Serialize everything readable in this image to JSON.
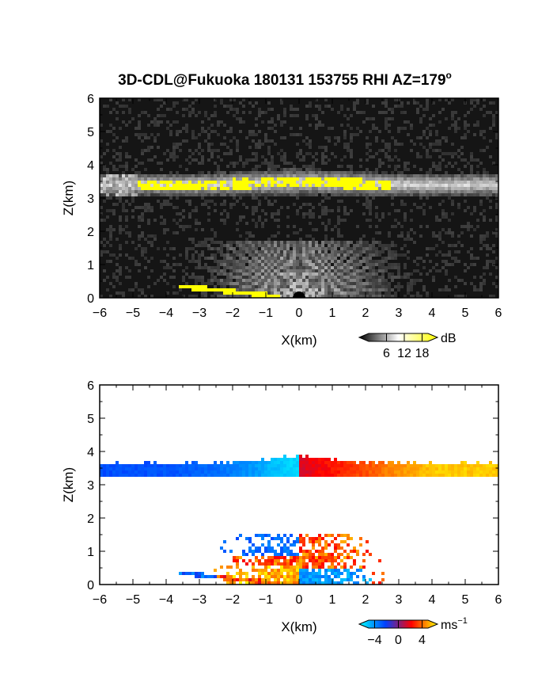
{
  "figure": {
    "title": "3D-CDL@Fukuoka 180131 153755 RHI AZ=179",
    "title_superscript": "o"
  },
  "chart_data": [
    {
      "type": "heatmap",
      "name": "backscatter-intensity",
      "xlabel": "X(km)",
      "ylabel": "Z(km)",
      "xlim": [
        -6,
        6
      ],
      "ylim": [
        0,
        6
      ],
      "x_ticks": [
        "-6",
        "-5",
        "-4",
        "-3",
        "-2",
        "-1",
        "0",
        "1",
        "2",
        "3",
        "4",
        "5",
        "6"
      ],
      "y_ticks": [
        "0",
        "1",
        "2",
        "3",
        "4",
        "5",
        "6"
      ],
      "background_color": "#151515",
      "colorbar": {
        "unit": "dB",
        "ticks": [
          "6",
          "12",
          "18"
        ],
        "tick_values": [
          6,
          12,
          18
        ],
        "range": [
          0,
          20
        ],
        "colors": [
          "#000000",
          "#ffffff",
          "#ffff00"
        ]
      },
      "features": [
        {
          "label": "cloud layer",
          "x_range": [
            -6,
            6
          ],
          "z_base": 3.15,
          "z_top": 3.65
        },
        {
          "label": "saturated cloud (>18 dB)",
          "x_range": [
            -5,
            2.8
          ],
          "z": 3.35
        },
        {
          "label": "near-field fan",
          "x_range": [
            -3.5,
            3.5
          ],
          "z_range": [
            0,
            1.6
          ]
        }
      ]
    },
    {
      "type": "heatmap",
      "name": "doppler-velocity",
      "xlabel": "X(km)",
      "ylabel": "Z(km)",
      "xlim": [
        -6,
        6
      ],
      "ylim": [
        0,
        6
      ],
      "x_ticks": [
        "-6",
        "-5",
        "-4",
        "-3",
        "-2",
        "-1",
        "0",
        "1",
        "2",
        "3",
        "4",
        "5",
        "6"
      ],
      "y_ticks": [
        "0",
        "1",
        "2",
        "3",
        "4",
        "5",
        "6"
      ],
      "background_color": "#ffffff",
      "colorbar": {
        "unit": "ms",
        "unit_superscript": "−1",
        "ticks": [
          "−4",
          "0",
          "4"
        ],
        "tick_values": [
          -4,
          0,
          4
        ],
        "range": [
          -5,
          5
        ],
        "colors": [
          "#00ffff",
          "#0040ff",
          "#ff0000",
          "#ffff00"
        ]
      },
      "features": [
        {
          "label": "cloud layer velocity",
          "x_range": [
            -6,
            6
          ],
          "z_base": 3.15,
          "z_top": 3.75,
          "velocity_west": -3.5,
          "velocity_east": 4
        },
        {
          "label": "boundary layer velocities",
          "x_range": [
            -3.5,
            2.6
          ],
          "z_range": [
            0,
            1.5
          ]
        }
      ]
    }
  ]
}
